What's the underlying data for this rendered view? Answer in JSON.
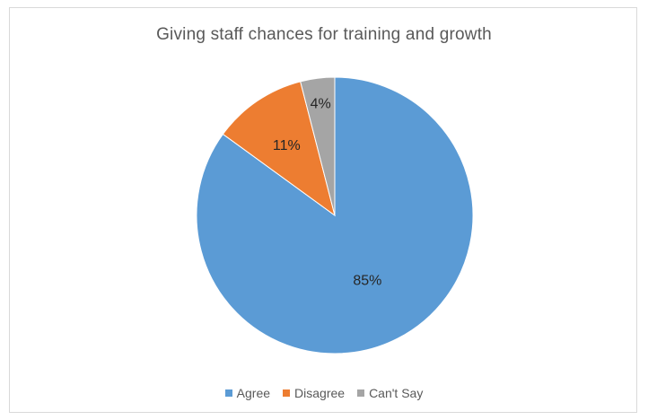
{
  "chart_data": {
    "type": "pie",
    "title": "Giving staff chances for training and growth",
    "categories": [
      "Agree",
      "Disagree",
      "Can't Say"
    ],
    "values": [
      85,
      11,
      4
    ],
    "labels": [
      "85%",
      "11%",
      "4%"
    ],
    "colors": [
      "#5b9bd5",
      "#ed7d31",
      "#a5a5a5"
    ],
    "legend": "bottom",
    "start_angle": "12 o'clock, clockwise"
  }
}
